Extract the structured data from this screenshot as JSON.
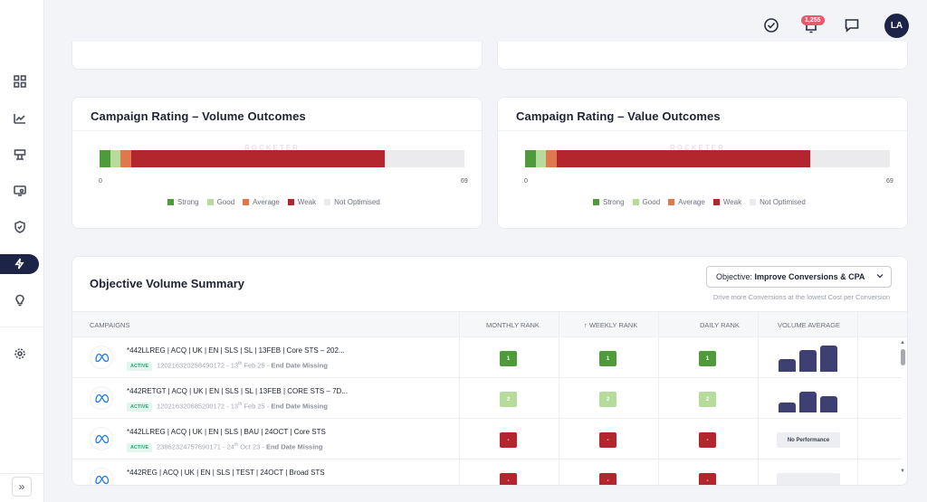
{
  "sidebar": {
    "items": [
      {
        "icon": "dashboard-grid-icon"
      },
      {
        "icon": "line-chart-icon"
      },
      {
        "icon": "billboard-icon"
      },
      {
        "icon": "monitor-settings-icon"
      },
      {
        "icon": "shield-check-icon"
      },
      {
        "icon": "lightning-icon",
        "active": true
      },
      {
        "icon": "lightbulb-icon"
      },
      {
        "icon": "gear-icon"
      }
    ],
    "expand_label": "»"
  },
  "topbar": {
    "notification_count": "1,255",
    "user_initials": "LA"
  },
  "volume_card": {
    "title": "Campaign Rating – Volume Outcomes",
    "watermark": "ROCKETER",
    "axis_min": "0",
    "axis_max": "69"
  },
  "value_card": {
    "title": "Campaign Rating – Value Outcomes",
    "watermark": "ROCKETER",
    "axis_min": "0",
    "axis_max": "69"
  },
  "legend": [
    {
      "label": "Strong",
      "color": "#4f9a3a"
    },
    {
      "label": "Good",
      "color": "#b5dc9a"
    },
    {
      "label": "Average",
      "color": "#e0784e"
    },
    {
      "label": "Weak",
      "color": "#b3262e"
    },
    {
      "label": "Not Optimised",
      "color": "#ebebee"
    }
  ],
  "chart_data": [
    {
      "type": "bar",
      "title": "Campaign Rating – Volume Outcomes",
      "stacked": true,
      "orientation": "horizontal",
      "xlim": [
        0,
        69
      ],
      "series": [
        {
          "name": "Strong",
          "values": [
            2
          ]
        },
        {
          "name": "Good",
          "values": [
            2
          ]
        },
        {
          "name": "Average",
          "values": [
            2
          ]
        },
        {
          "name": "Weak",
          "values": [
            48
          ]
        },
        {
          "name": "Not Optimised",
          "values": [
            15
          ]
        }
      ]
    },
    {
      "type": "bar",
      "title": "Campaign Rating – Value Outcomes",
      "stacked": true,
      "orientation": "horizontal",
      "xlim": [
        0,
        69
      ],
      "series": [
        {
          "name": "Strong",
          "values": [
            2
          ]
        },
        {
          "name": "Good",
          "values": [
            2
          ]
        },
        {
          "name": "Average",
          "values": [
            2
          ]
        },
        {
          "name": "Weak",
          "values": [
            48
          ]
        },
        {
          "name": "Not Optimised",
          "values": [
            15
          ]
        }
      ]
    }
  ],
  "summary": {
    "title": "Objective Volume Summary",
    "objective_label": "Objective:",
    "objective_value": "Improve Conversions & CPA",
    "objective_sub": "Drive more Conversions at the lowest Cost per Conversion",
    "columns": [
      "CAMPAIGNS",
      "MONTHLY RANK",
      "↑ WEEKLY RANK",
      "DAILY RANK",
      "VOLUME AVERAGE"
    ],
    "rows": [
      {
        "name": "*442LLREG | ACQ | UK | EN | SLS | SL | 13FEB | Core STS – 202...",
        "status": "ACTIVE",
        "id": "120216320258490172",
        "date_prefix": " - 13",
        "date_sup": "th",
        "date_suffix": " Feb 25 - ",
        "end": "End Date Missing",
        "monthly": "1",
        "weekly": "1",
        "daily": "1",
        "rank_color": "#4f9a3a",
        "volume": [
          0.45,
          0.8,
          0.95
        ],
        "no_perf": ""
      },
      {
        "name": "*442RETGT | ACQ | UK | EN | SLS | SL | 13FEB | CORE STS – 7D...",
        "status": "ACTIVE",
        "id": "120216320685200172",
        "date_prefix": " - 13",
        "date_sup": "th",
        "date_suffix": " Feb 25 - ",
        "end": "End Date Missing",
        "monthly": "2",
        "weekly": "2",
        "daily": "2",
        "rank_color": "#b5dc9a",
        "volume": [
          0.35,
          0.75,
          0.6
        ],
        "no_perf": ""
      },
      {
        "name": "*442LLREG | ACQ | UK | EN | SLS | BAU | 24OCT | Core STS",
        "status": "ACTIVE",
        "id": "23862324757690171",
        "date_prefix": " - 24",
        "date_sup": "th",
        "date_suffix": " Oct 23 - ",
        "end": "End Date Missing",
        "monthly": "-",
        "weekly": "-",
        "daily": "-",
        "rank_color": "#b3262e",
        "volume": [],
        "no_perf": "No Performance"
      },
      {
        "name": "*442REG | ACQ | UK | EN | SLS | TEST | 24OCT | Broad STS",
        "status": "",
        "id": "",
        "date_prefix": "",
        "date_sup": "",
        "date_suffix": "",
        "end": "",
        "monthly": "-",
        "weekly": "-",
        "daily": "-",
        "rank_color": "#b3262e",
        "volume": [],
        "no_perf": ""
      }
    ]
  }
}
